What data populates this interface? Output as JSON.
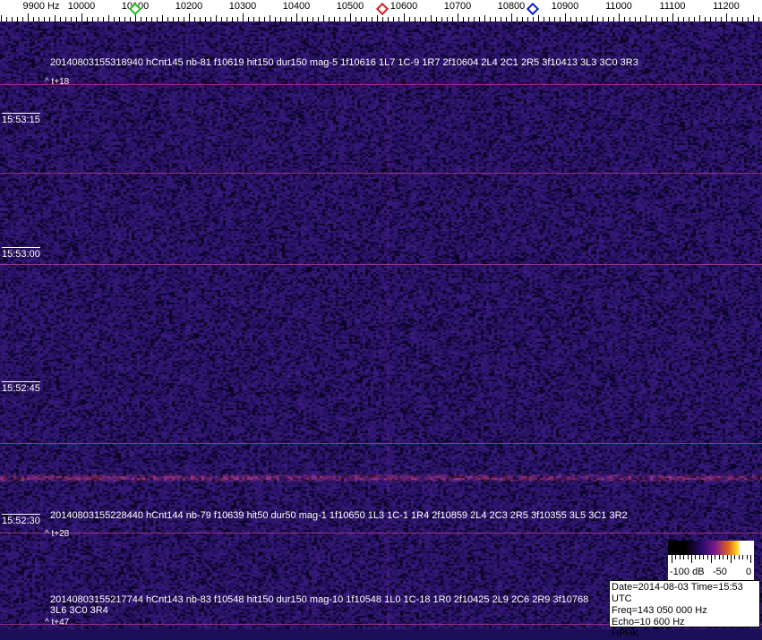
{
  "axis": {
    "unit_label": "9900 Hz",
    "tick_labels": [
      "10000",
      "10100",
      "10200",
      "10300",
      "10400",
      "10500",
      "10600",
      "10700",
      "10800",
      "10900",
      "11000",
      "11100",
      "11200"
    ],
    "markers": [
      {
        "name": "green-marker",
        "freq_hz": 10100,
        "color": "#22c022"
      },
      {
        "name": "red-marker",
        "freq_hz": 10560,
        "color": "#d02020"
      },
      {
        "name": "blue-marker",
        "freq_hz": 10840,
        "color": "#1020c0"
      }
    ]
  },
  "time_labels": [
    "15:53:15",
    "15:53:00",
    "15:52:45",
    "15:52:30"
  ],
  "detections": [
    {
      "text": "20140803155318940 hCnt145 nb-81 f10619 hit150 dur150 mag-5 1f10616 1L7 1C-9 1R7 2f10604 2L4 2C1 2R5 3f10413 3L3 3C0 3R3",
      "offset": "^ t+18"
    },
    {
      "text": "20140803155228440 hCnt144 nb-79 f10639 hit50 dur50 mag-1 1f10650 1L3 1C-1 1R4 2f10859 2L4 2C3 2R5 3f10355 3L5 3C1 3R2",
      "offset": "^ t+28"
    },
    {
      "text": "20140803155217744 hCnt143 nb-83 f10548 hit150 dur150 mag-10 1f10548 1L0 1C-18 1R0 2f10425 2L9 2C6 2R9 3f10768 3L6 3C0 3R4",
      "offset": "^ t+47"
    }
  ],
  "colorbar": {
    "labels": [
      "-100 dB",
      "-50",
      "0"
    ]
  },
  "info": {
    "line1": "Date=2014-08-03 Time=15:53 UTC",
    "line2": "Freq=143 050 000 Hz",
    "line3": "Echo=10 600 Hz",
    "line4": "HPHK"
  },
  "colors": {
    "background": "#1c0f5a",
    "trace": "#b03a8c"
  }
}
